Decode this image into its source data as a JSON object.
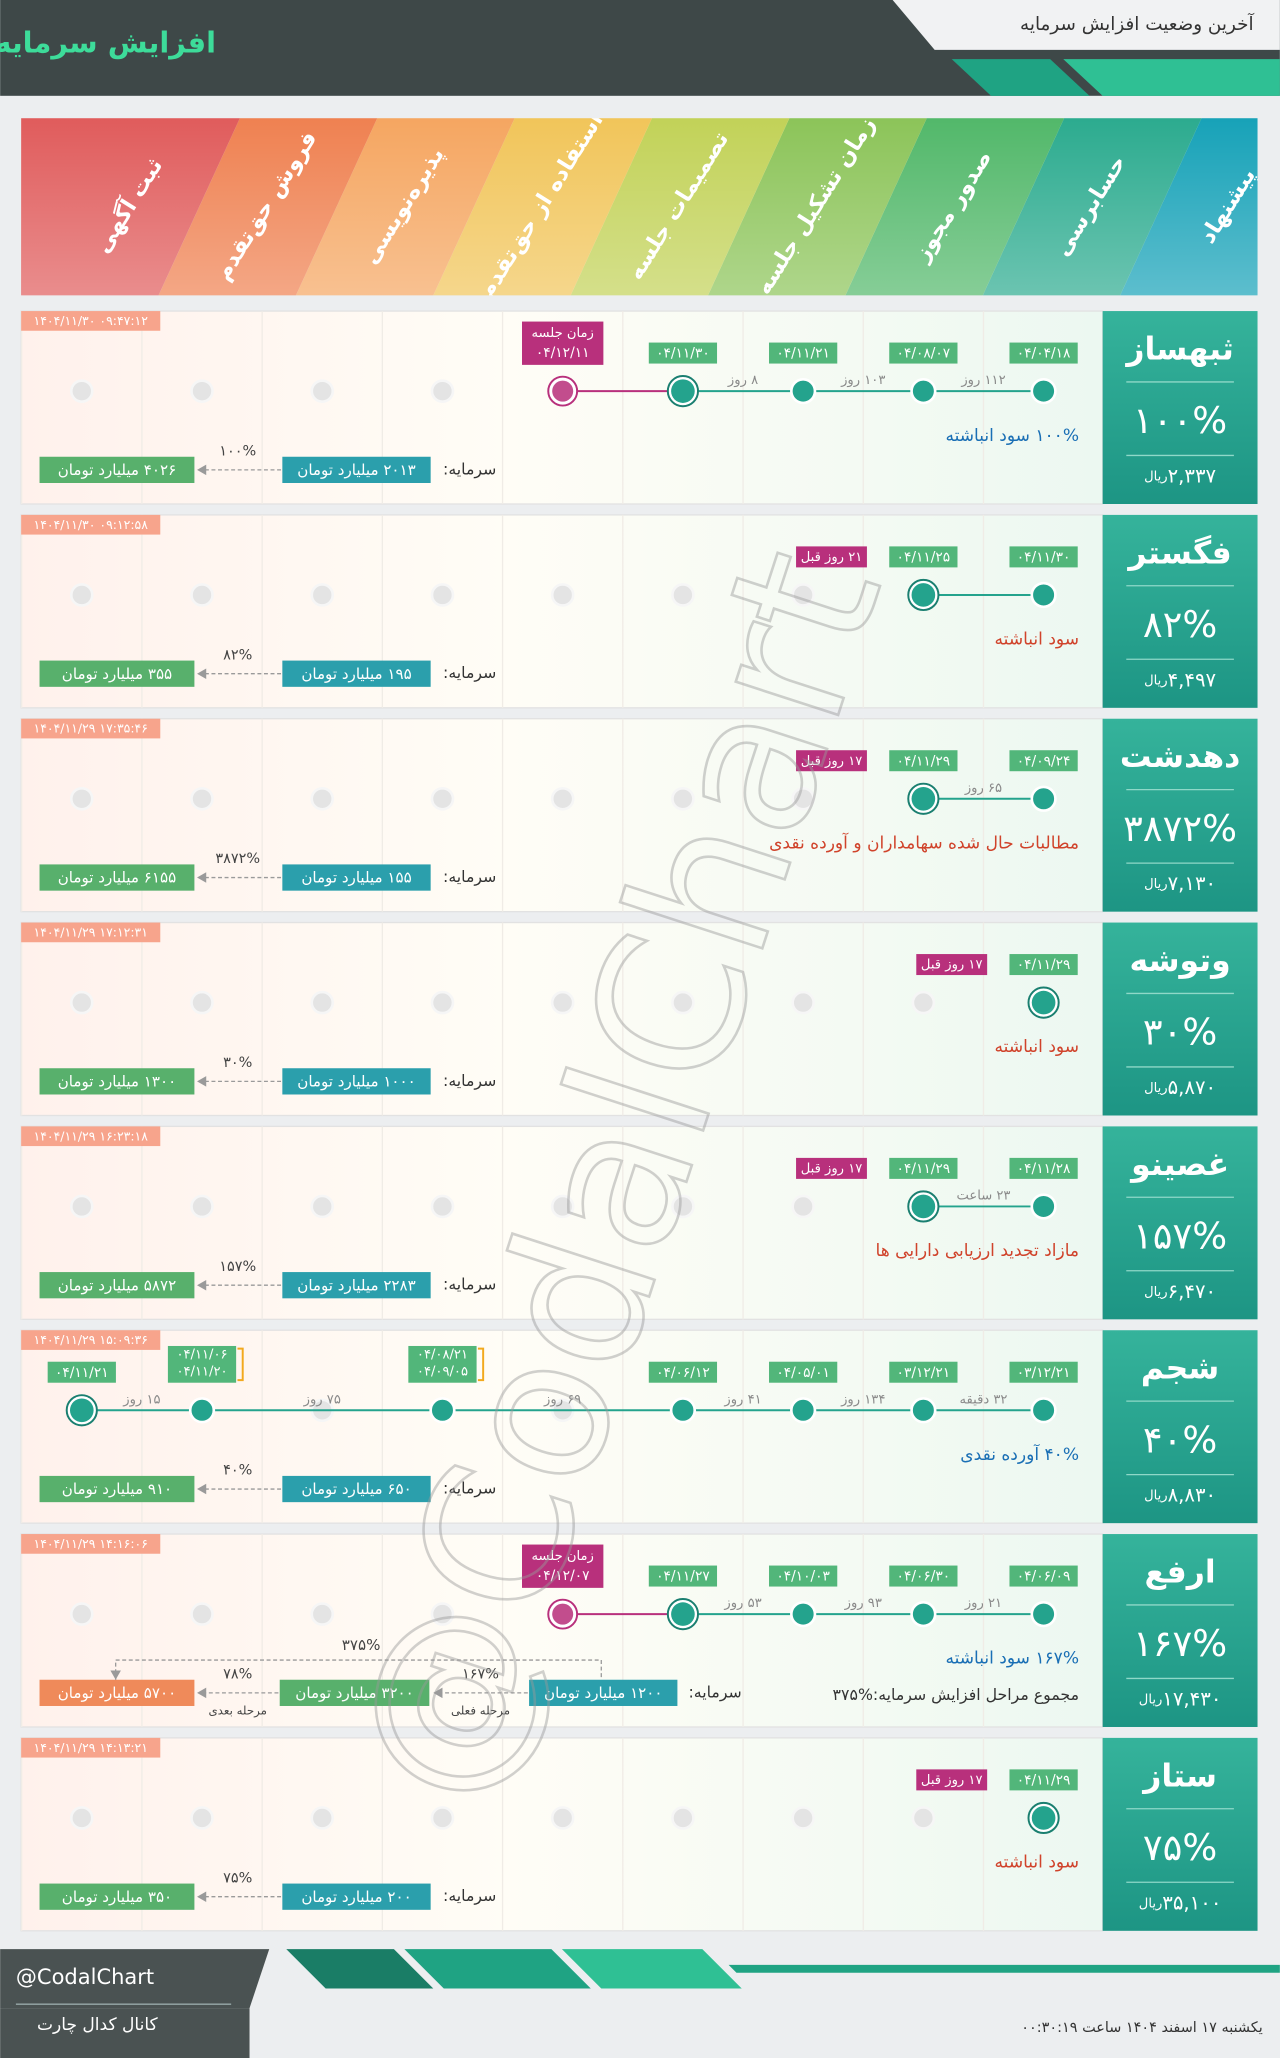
{
  "header": {
    "title": "افزایش سرمایه",
    "subtitle": "آخرین وضعیت افزایش سرمایه"
  },
  "stages": [
    "پیشنهاد",
    "حسابرسی",
    "صدور مجوز",
    "زمان تشکیل جلسه",
    "تصمیمات جلسه",
    "استفاده از حق‌تقدم",
    "پذیره‌نویسی",
    "فروش حق‌تقدم",
    "ثبت آگهی"
  ],
  "rows": [
    {
      "name": "ثبهساز",
      "percent": "۱۰۰%",
      "price": "۲,۳۳۷",
      "currency": "ریال",
      "timestamp": "۱۴۰۴/۱۱/۳۰ ۰۹:۴۷:۱۲",
      "dates": [
        "۰۴/۰۴/۱۸",
        "۰۴/۰۸/۰۷",
        "۰۴/۱۱/۲۱",
        "۰۴/۱۱/۳۰",
        "۰۴/۱۲/۱۱"
      ],
      "meeting_label": "زمان جلسه",
      "gaps": [
        "۱۱۲ روز",
        "۱۰۳ روز",
        "۸ روز"
      ],
      "description": "۱۰۰% سود انباشته",
      "description_color": "#1a6fb5",
      "capital_label": "سرمایه:",
      "capital": "۲۰۱۳ میلیارد تومان",
      "increase": "۱۰۰%",
      "result": "۴۰۲۶ میلیارد تومان"
    },
    {
      "name": "فگستر",
      "percent": "۸۲%",
      "price": "۴,۴۹۷",
      "currency": "ریال",
      "timestamp": "۱۴۰۴/۱۱/۳۰ ۰۹:۱۲:۵۸",
      "dates": [
        "۰۴/۱۱/۳۰",
        "۰۴/۱۱/۲۵"
      ],
      "ago": "۲۱ روز قبل",
      "gaps": [],
      "description": "سود انباشته",
      "description_color": "#d0432b",
      "capital_label": "سرمایه:",
      "capital": "۱۹۵ میلیارد تومان",
      "increase": "۸۲%",
      "result": "۳۵۵ میلیارد تومان"
    },
    {
      "name": "دهدشت",
      "percent": "۳۸۷۲%",
      "price": "۷,۱۳۰",
      "currency": "ریال",
      "timestamp": "۱۴۰۴/۱۱/۲۹ ۱۷:۳۵:۴۶",
      "dates": [
        "۰۴/۰۹/۲۴",
        "۰۴/۱۱/۲۹"
      ],
      "ago": "۱۷ روز قبل",
      "gaps": [
        "۶۵ روز"
      ],
      "description": "مطالبات حال شده سهامداران و آورده نقدی",
      "description_color": "#d0432b",
      "capital_label": "سرمایه:",
      "capital": "۱۵۵ میلیارد تومان",
      "increase": "۳۸۷۲%",
      "result": "۶۱۵۵ میلیارد تومان"
    },
    {
      "name": "وتوشه",
      "percent": "۳۰%",
      "price": "۵,۸۷۰",
      "currency": "ریال",
      "timestamp": "۱۴۰۴/۱۱/۲۹ ۱۷:۱۲:۳۱",
      "dates": [
        "۰۴/۱۱/۲۹"
      ],
      "ago": "۱۷ روز قبل",
      "gaps": [],
      "description": "سود انباشته",
      "description_color": "#d0432b",
      "capital_label": "سرمایه:",
      "capital": "۱۰۰۰ میلیارد تومان",
      "increase": "۳۰%",
      "result": "۱۳۰۰ میلیارد تومان"
    },
    {
      "name": "غصینو",
      "percent": "۱۵۷%",
      "price": "۶,۴۷۰",
      "currency": "ریال",
      "timestamp": "۱۴۰۴/۱۱/۲۹ ۱۶:۲۳:۱۸",
      "dates": [
        "۰۴/۱۱/۲۸",
        "۰۴/۱۱/۲۹"
      ],
      "ago": "۱۷ روز قبل",
      "gaps": [
        "۲۳ ساعت"
      ],
      "description": "مازاد تجدید ارزیابی دارایی ها",
      "description_color": "#d0432b",
      "capital_label": "سرمایه:",
      "capital": "۲۲۸۳ میلیارد تومان",
      "increase": "۱۵۷%",
      "result": "۵۸۷۲ میلیارد تومان"
    },
    {
      "name": "شجم",
      "percent": "۴۰%",
      "price": "۸,۸۳۰",
      "currency": "ریال",
      "timestamp": "۱۴۰۴/۱۱/۲۹ ۱۵:۰۹:۳۶",
      "dates": [
        "۰۳/۱۲/۲۱",
        "۰۳/۱۲/۲۱",
        "۰۴/۰۵/۰۱",
        "۰۴/۰۶/۱۲",
        null,
        [
          "۰۴/۰۸/۲۱",
          "۰۴/۰۹/۰۵"
        ],
        null,
        [
          "۰۴/۱۱/۰۶",
          "۰۴/۱۱/۲۰"
        ],
        "۰۴/۱۱/۲۱"
      ],
      "gaps": [
        "۳۲ دقیقه",
        "۱۳۴ روز",
        "۴۱ روز",
        "۶۹ روز",
        "۷۵ روز",
        "۱۵ روز"
      ],
      "description": "۴۰% آورده نقدی",
      "description_color": "#1a6fb5",
      "capital_label": "سرمایه:",
      "capital": "۶۵۰ میلیارد تومان",
      "increase": "۴۰%",
      "result": "۹۱۰ میلیارد تومان"
    },
    {
      "name": "ارفع",
      "percent": "۱۶۷%",
      "price": "۱۷,۴۳۰",
      "currency": "ریال",
      "timestamp": "۱۴۰۴/۱۱/۲۹ ۱۴:۱۶:۰۶",
      "dates": [
        "۰۴/۰۶/۰۹",
        "۰۴/۰۶/۳۰",
        "۰۴/۱۰/۰۳",
        "۰۴/۱۱/۲۷",
        "۰۴/۱۲/۰۷"
      ],
      "meeting_label": "زمان جلسه",
      "gaps": [
        "۲۱ روز",
        "۹۳ روز",
        "۵۳ روز"
      ],
      "description": "۱۶۷% سود انباشته",
      "description_color": "#1a6fb5",
      "note": "مجموع مراحل افزایش سرمایه:%۳۷۵",
      "capital_label": "سرمایه:",
      "capital": "۱۲۰۰ میلیارد تومان",
      "increase": "۱۶۷%",
      "current_label": "مرحله فعلی",
      "middle": "۳۲۰۰ میلیارد تومان",
      "increase2": "۷۸%",
      "next_label": "مرحله بعدی",
      "result": "۵۷۰۰ میلیارد تومان",
      "total": "۳۷۵%"
    },
    {
      "name": "ستاز",
      "percent": "۷۵%",
      "price": "۳۵,۱۰۰",
      "currency": "ریال",
      "timestamp": "۱۴۰۴/۱۱/۲۹ ۱۴:۱۳:۲۱",
      "dates": [
        "۰۴/۱۱/۲۹"
      ],
      "ago": "۱۷ روز قبل",
      "gaps": [],
      "description": "سود انباشته",
      "description_color": "#d0432b",
      "capital_label": "سرمایه:",
      "capital": "۲۰۰ میلیارد تومان",
      "increase": "۷۵%",
      "result": "۳۵۰ میلیارد تومان"
    }
  ],
  "watermark": "@CodalChart",
  "footer": {
    "handle": "@CodalChart",
    "channel": "کانال کدال چارت",
    "datetime": "یکشنبه ۱۷ اسفند ۱۴۰۴ ساعت ۰۰:۳۰:۱۹"
  }
}
